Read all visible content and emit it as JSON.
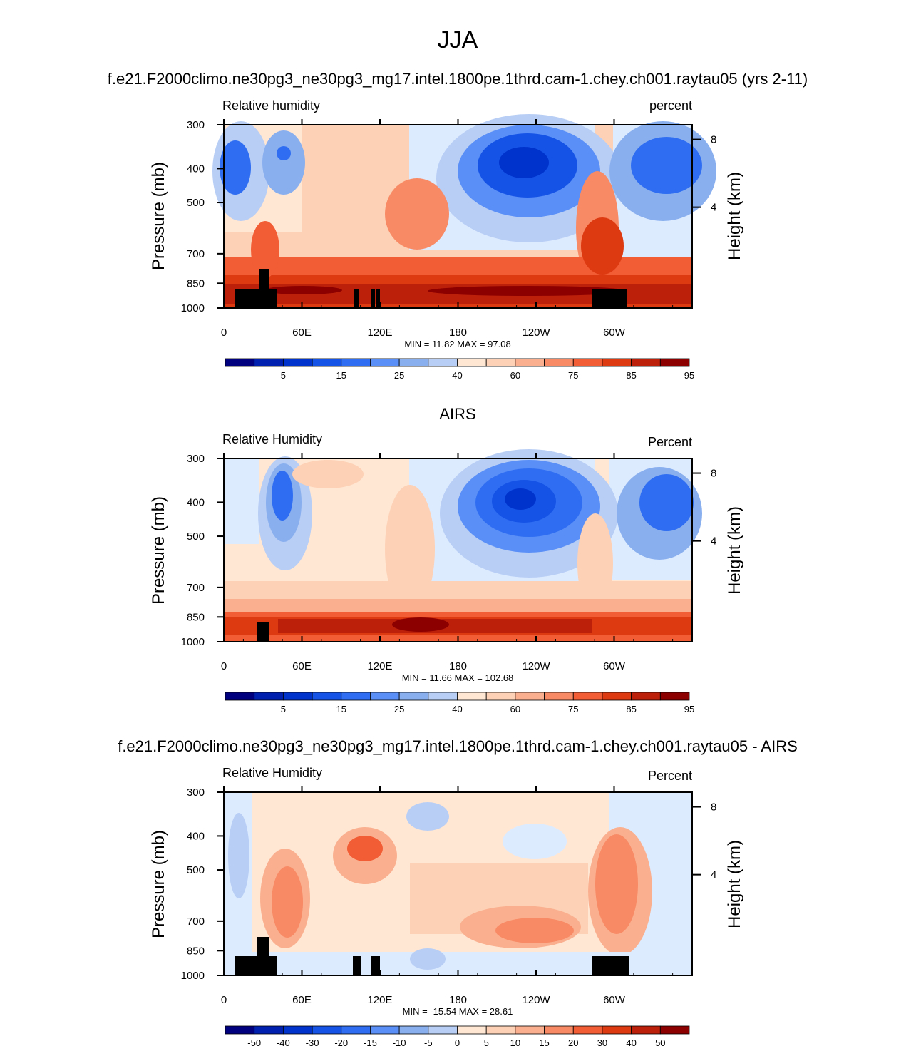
{
  "figure": {
    "title": "JJA"
  },
  "colors": {
    "scale": [
      "#00007f",
      "#0020b0",
      "#0033cc",
      "#1553e6",
      "#2f6ef2",
      "#5a8ff7",
      "#89afef",
      "#b8cef5",
      "#ddebff",
      "#ffe7d4",
      "#fdd1b5",
      "#fab08f",
      "#f88a65",
      "#f25d35",
      "#dd3a12",
      "#bd200a",
      "#8c0000"
    ],
    "land": "#000000"
  },
  "chart_data": [
    {
      "type": "heatmap",
      "title": "f.e21.F2000climo.ne30pg3_ne30pg3_mg17.intel.1800pe.1thrd.cam-1.chey.ch001.raytau05 (yrs 2-11)",
      "left_label": "Relative humidity",
      "right_label": "percent",
      "ylabel": "Pressure (mb)",
      "y2label": "Height (km)",
      "xticks": [
        "0",
        "60E",
        "120E",
        "180",
        "120W",
        "60W"
      ],
      "yticks": [
        "300",
        "400",
        "500",
        "700",
        "850",
        "1000"
      ],
      "y2ticks": [
        "8",
        "4"
      ],
      "stats": "MIN =  11.82  MAX =  97.08",
      "colorbar_labels": [
        "5",
        "15",
        "25",
        "40",
        "60",
        "75",
        "85",
        "95"
      ],
      "min": 11.82,
      "max": 97.08
    },
    {
      "type": "heatmap",
      "title": "AIRS",
      "left_label": "Relative Humidity",
      "right_label": "Percent",
      "ylabel": "Pressure (mb)",
      "y2label": "Height (km)",
      "xticks": [
        "0",
        "60E",
        "120E",
        "180",
        "120W",
        "60W"
      ],
      "yticks": [
        "300",
        "400",
        "500",
        "700",
        "850",
        "1000"
      ],
      "y2ticks": [
        "8",
        "4"
      ],
      "stats": "MIN =  11.66  MAX = 102.68",
      "colorbar_labels": [
        "5",
        "15",
        "25",
        "40",
        "60",
        "75",
        "85",
        "95"
      ],
      "min": 11.66,
      "max": 102.68
    },
    {
      "type": "heatmap",
      "title": "f.e21.F2000climo.ne30pg3_ne30pg3_mg17.intel.1800pe.1thrd.cam-1.chey.ch001.raytau05 - AIRS",
      "left_label": "Relative Humidity",
      "right_label": "Percent",
      "ylabel": "Pressure (mb)",
      "y2label": "Height (km)",
      "xticks": [
        "0",
        "60E",
        "120E",
        "180",
        "120W",
        "60W"
      ],
      "yticks": [
        "300",
        "400",
        "500",
        "700",
        "850",
        "1000"
      ],
      "y2ticks": [
        "8",
        "4"
      ],
      "stats": "MIN = -15.54  MAX =  28.61",
      "colorbar_labels": [
        "-50",
        "-40",
        "-30",
        "-20",
        "-15",
        "-10",
        "-5",
        "0",
        "5",
        "10",
        "15",
        "20",
        "30",
        "40",
        "50"
      ],
      "min": -15.54,
      "max": 28.61
    }
  ]
}
